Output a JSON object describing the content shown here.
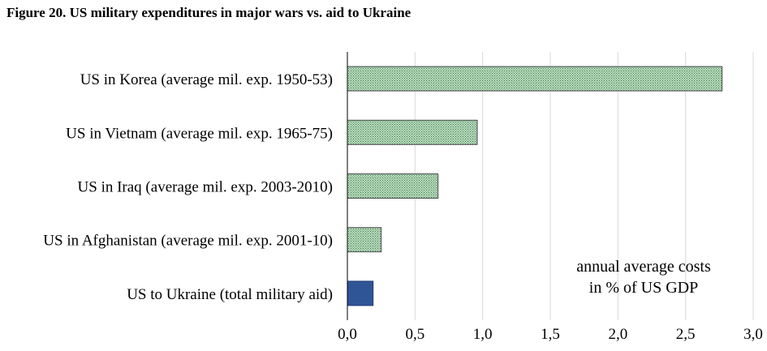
{
  "chart_data": {
    "type": "bar",
    "orientation": "horizontal",
    "title": "Figure 20. US military expenditures in major wars vs. aid to Ukraine",
    "categories": [
      "US in Korea (average mil. exp. 1950-53)",
      "US in Vietnam (average mil. exp. 1965-75)",
      "US in Iraq (average mil. exp. 2003-2010)",
      "US in Afghanistan (average mil. exp. 2001-10)",
      "US to Ukraine (total military aid)"
    ],
    "values": [
      2.77,
      0.96,
      0.67,
      0.25,
      0.19
    ],
    "colors": [
      "#9fc9a6",
      "#9fc9a6",
      "#9fc9a6",
      "#9fc9a6",
      "#2f5597"
    ],
    "xlim": [
      0,
      3.0
    ],
    "xticks": [
      "0,0",
      "0,5",
      "1,0",
      "1,5",
      "2,0",
      "2,5",
      "3,0"
    ],
    "grid": true,
    "annotation": [
      "annual average costs",
      "in % of US GDP"
    ]
  }
}
